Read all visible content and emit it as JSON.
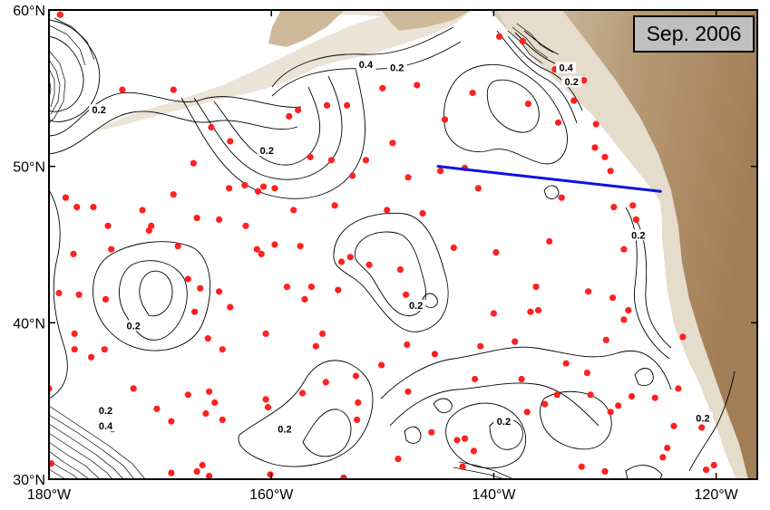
{
  "date_label": "Sep. 2006",
  "axes": {
    "lon_ticks": [
      {
        "lon": -180,
        "label": "180°W"
      },
      {
        "lon": -160,
        "label": "160°W"
      },
      {
        "lon": -140,
        "label": "140°W"
      },
      {
        "lon": -120,
        "label": "120°W"
      }
    ],
    "lat_ticks": [
      {
        "lat": 60,
        "label": "60°N"
      },
      {
        "lat": 50,
        "label": "50°N"
      },
      {
        "lat": 40,
        "label": "40°N"
      },
      {
        "lat": 30,
        "label": "30°N"
      }
    ]
  },
  "contour_labels": [
    {
      "text": "0.4",
      "lon": -151.5,
      "lat": 56.4
    },
    {
      "text": "0.2",
      "lon": -148.7,
      "lat": 56.2
    },
    {
      "text": "0.4",
      "lon": -133.5,
      "lat": 56.2
    },
    {
      "text": "0.2",
      "lon": -133.0,
      "lat": 55.3
    },
    {
      "text": "0.2",
      "lon": -175.5,
      "lat": 53.5
    },
    {
      "text": "0.2",
      "lon": -160.4,
      "lat": 50.9
    },
    {
      "text": "0.2",
      "lon": -127.0,
      "lat": 45.5
    },
    {
      "text": "0.2",
      "lon": -147.0,
      "lat": 41.0
    },
    {
      "text": "0.2",
      "lon": -172.4,
      "lat": 39.7
    },
    {
      "text": "0.2",
      "lon": -174.9,
      "lat": 34.3
    },
    {
      "text": "0.4",
      "lon": -174.9,
      "lat": 33.3
    },
    {
      "text": "0.2",
      "lon": -158.8,
      "lat": 33.1
    },
    {
      "text": "0.2",
      "lon": -139.1,
      "lat": 33.6
    },
    {
      "text": "0.2",
      "lon": -121.2,
      "lat": 33.8
    }
  ],
  "section_line": {
    "start": {
      "lon": -145,
      "lat": 50.0
    },
    "end": {
      "lon": -125.0,
      "lat": 48.4
    }
  },
  "colors": {
    "floats": "#ff2020",
    "section": "#0a14e0",
    "land_light": "#ece5d9",
    "land_dark": "#a78660",
    "frame": "#000000"
  },
  "float_positions": [
    [
      -179.0,
      59.7
    ],
    [
      -173.4,
      54.9
    ],
    [
      -168.8,
      54.9
    ],
    [
      -158.4,
      53.2
    ],
    [
      -157.6,
      53.6
    ],
    [
      -155.0,
      53.9
    ],
    [
      -153.2,
      53.9
    ],
    [
      -150.0,
      55.0
    ],
    [
      -146.9,
      55.2
    ],
    [
      -144.4,
      53.0
    ],
    [
      -141.9,
      54.7
    ],
    [
      -139.5,
      58.3
    ],
    [
      -137.4,
      58.0
    ],
    [
      -134.5,
      56.2
    ],
    [
      -131.9,
      55.5
    ],
    [
      -136.9,
      54.0
    ],
    [
      -132.8,
      54.2
    ],
    [
      -134.2,
      52.8
    ],
    [
      -130.8,
      52.7
    ],
    [
      -165.4,
      52.5
    ],
    [
      -163.7,
      51.6
    ],
    [
      -156.5,
      50.6
    ],
    [
      -154.6,
      50.4
    ],
    [
      -151.5,
      50.4
    ],
    [
      -149.1,
      51.5
    ],
    [
      -142.6,
      49.9
    ],
    [
      -144.8,
      49.7
    ],
    [
      -141.4,
      48.6
    ],
    [
      -130.0,
      50.6
    ],
    [
      -129.5,
      49.7
    ],
    [
      -130.9,
      51.2
    ],
    [
      -133.9,
      48.0
    ],
    [
      -178.5,
      48.0
    ],
    [
      -177.5,
      47.4
    ],
    [
      -176.0,
      47.4
    ],
    [
      -174.7,
      46.2
    ],
    [
      -170.8,
      46.2
    ],
    [
      -171.6,
      47.2
    ],
    [
      -168.8,
      48.2
    ],
    [
      -167.0,
      50.2
    ],
    [
      -163.8,
      48.6
    ],
    [
      -162.4,
      48.8
    ],
    [
      -161.2,
      48.4
    ],
    [
      -159.7,
      48.6
    ],
    [
      -158.0,
      47.2
    ],
    [
      -152.7,
      49.4
    ],
    [
      -154.3,
      47.5
    ],
    [
      -149.6,
      47.2
    ],
    [
      -146.4,
      47.0
    ],
    [
      -129.2,
      47.4
    ],
    [
      -127.5,
      47.5
    ],
    [
      -128.3,
      44.7
    ],
    [
      -135.0,
      45.2
    ],
    [
      -143.6,
      44.8
    ],
    [
      -139.8,
      44.5
    ],
    [
      -136.2,
      42.3
    ],
    [
      -131.5,
      42.0
    ],
    [
      -129.3,
      41.6
    ],
    [
      -127.9,
      40.8
    ],
    [
      -128.3,
      40.2
    ],
    [
      -136.0,
      40.8
    ],
    [
      -140.0,
      40.6
    ],
    [
      -147.9,
      41.8
    ],
    [
      -148.4,
      43.4
    ],
    [
      -151.2,
      43.7
    ],
    [
      -152.9,
      44.2
    ],
    [
      -157.4,
      44.9
    ],
    [
      -159.7,
      45.0
    ],
    [
      -160.9,
      44.4
    ],
    [
      -161.3,
      44.7
    ],
    [
      -162.3,
      46.2
    ],
    [
      -164.7,
      46.6
    ],
    [
      -166.7,
      46.7
    ],
    [
      -168.4,
      44.9
    ],
    [
      -171.0,
      45.9
    ],
    [
      -174.4,
      44.7
    ],
    [
      -177.8,
      44.4
    ],
    [
      -179.1,
      41.9
    ],
    [
      -177.3,
      41.8
    ],
    [
      -174.9,
      41.5
    ],
    [
      -167.5,
      42.8
    ],
    [
      -166.4,
      42.2
    ],
    [
      -164.7,
      42.0
    ],
    [
      -163.7,
      41.0
    ],
    [
      -166.9,
      40.7
    ],
    [
      -165.7,
      39.0
    ],
    [
      -164.4,
      38.3
    ],
    [
      -160.5,
      39.3
    ],
    [
      -158.6,
      42.3
    ],
    [
      -157.0,
      41.5
    ],
    [
      -156.4,
      42.3
    ],
    [
      -153.7,
      43.9
    ],
    [
      -154.0,
      42.1
    ],
    [
      -155.4,
      39.3
    ],
    [
      -156.0,
      38.5
    ],
    [
      -152.4,
      36.6
    ],
    [
      -150.1,
      37.3
    ],
    [
      -147.8,
      38.6
    ],
    [
      -145.3,
      38.0
    ],
    [
      -141.2,
      38.5
    ],
    [
      -138.1,
      38.8
    ],
    [
      -141.7,
      36.4
    ],
    [
      -137.5,
      36.4
    ],
    [
      -133.5,
      37.4
    ],
    [
      -131.6,
      36.8
    ],
    [
      -129.9,
      38.9
    ],
    [
      -123.0,
      39.1
    ],
    [
      -177.7,
      39.3
    ],
    [
      -177.7,
      38.3
    ],
    [
      -176.2,
      37.8
    ],
    [
      -175.0,
      38.3
    ],
    [
      -172.4,
      35.8
    ],
    [
      -170.3,
      34.5
    ],
    [
      -167.5,
      35.4
    ],
    [
      -165.6,
      35.6
    ],
    [
      -165.1,
      34.9
    ],
    [
      -165.9,
      34.2
    ],
    [
      -164.4,
      33.8
    ],
    [
      -160.5,
      35.1
    ],
    [
      -160.3,
      34.6
    ],
    [
      -157.2,
      35.5
    ],
    [
      -155.1,
      36.2
    ],
    [
      -152.2,
      34.9
    ],
    [
      -152.3,
      33.8
    ],
    [
      -147.7,
      35.6
    ],
    [
      -145.6,
      33.0
    ],
    [
      -143.3,
      32.5
    ],
    [
      -142.6,
      32.6
    ],
    [
      -137.0,
      34.3
    ],
    [
      -135.4,
      34.8
    ],
    [
      -134.3,
      35.4
    ],
    [
      -131.3,
      35.4
    ],
    [
      -129.5,
      34.3
    ],
    [
      -127.6,
      35.3
    ],
    [
      -125.5,
      35.2
    ],
    [
      -123.4,
      35.8
    ],
    [
      -128.8,
      34.7
    ],
    [
      -121.3,
      33.3
    ],
    [
      -124.4,
      32.0
    ],
    [
      -123.8,
      33.4
    ],
    [
      -180.0,
      35.8
    ],
    [
      -179.8,
      31.0
    ],
    [
      -169.0,
      33.7
    ],
    [
      -166.2,
      30.9
    ],
    [
      -165.6,
      30.2
    ],
    [
      -160.1,
      30.3
    ],
    [
      -153.5,
      30.1
    ],
    [
      -148.6,
      31.3
    ],
    [
      -142.8,
      30.8
    ],
    [
      -132.1,
      30.8
    ],
    [
      -130.0,
      30.5
    ],
    [
      -120.2,
      30.9
    ],
    [
      -120.9,
      30.6
    ],
    [
      -124.8,
      31.4
    ],
    [
      -169.0,
      30.4
    ],
    [
      -166.7,
      30.5
    ],
    [
      -174.3,
      33.2
    ],
    [
      -160.7,
      48.7
    ],
    [
      -147.7,
      49.3
    ],
    [
      -127.2,
      46.6
    ],
    [
      -136.7,
      40.7
    ],
    [
      -141.8,
      31.8
    ]
  ]
}
